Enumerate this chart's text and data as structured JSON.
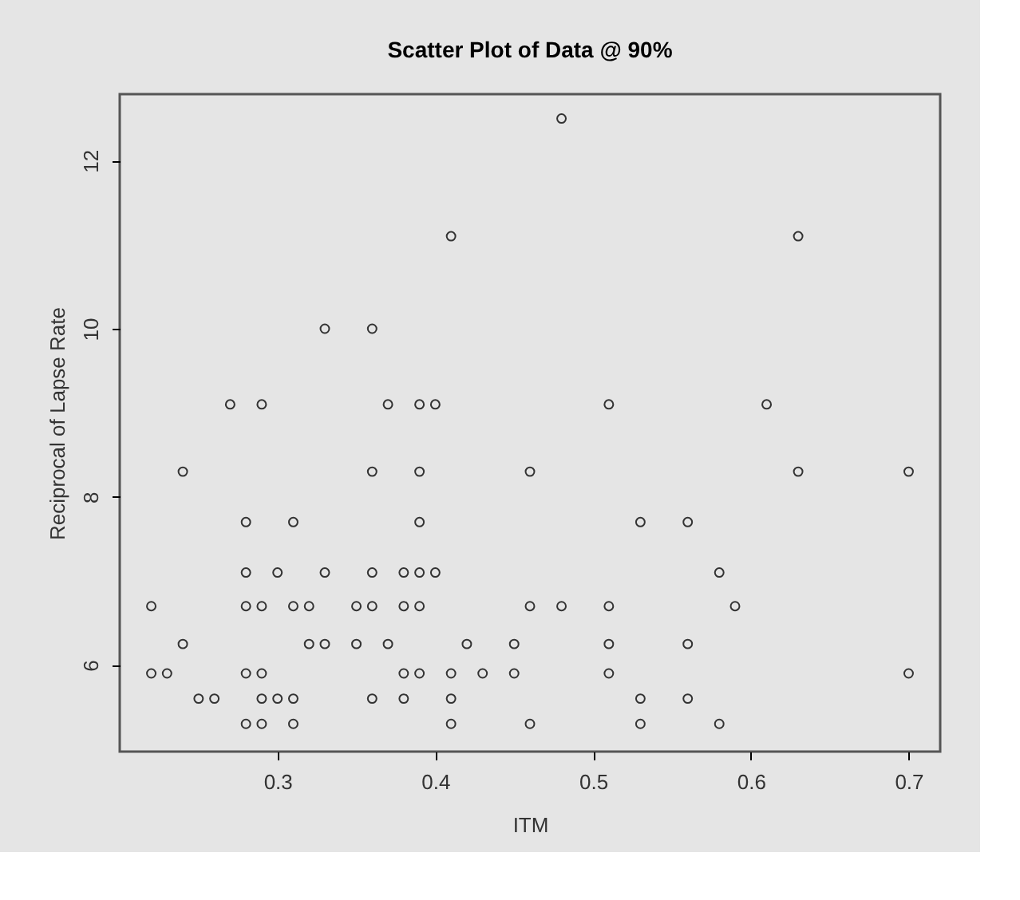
{
  "chart_data": {
    "type": "scatter",
    "title": "Scatter Plot of Data @ 90%",
    "xlabel": "ITM",
    "ylabel": "Reciprocal of Lapse Rate",
    "x": [
      0.48,
      0.41,
      0.63,
      0.33,
      0.36,
      0.27,
      0.29,
      0.37,
      0.39,
      0.4,
      0.51,
      0.61,
      0.24,
      0.36,
      0.39,
      0.46,
      0.63,
      0.7,
      0.28,
      0.31,
      0.39,
      0.53,
      0.56,
      0.28,
      0.3,
      0.33,
      0.36,
      0.38,
      0.39,
      0.4,
      0.58,
      0.22,
      0.28,
      0.29,
      0.31,
      0.32,
      0.35,
      0.36,
      0.38,
      0.39,
      0.46,
      0.48,
      0.51,
      0.59,
      0.24,
      0.32,
      0.33,
      0.35,
      0.37,
      0.42,
      0.45,
      0.51,
      0.56,
      0.22,
      0.23,
      0.28,
      0.29,
      0.38,
      0.39,
      0.41,
      0.43,
      0.45,
      0.51,
      0.7,
      0.25,
      0.26,
      0.29,
      0.3,
      0.31,
      0.36,
      0.38,
      0.41,
      0.53,
      0.56,
      0.28,
      0.29,
      0.31,
      0.41,
      0.46,
      0.53,
      0.58
    ],
    "values": [
      12.5,
      11.1,
      11.1,
      10.0,
      10.0,
      9.1,
      9.1,
      9.1,
      9.1,
      9.1,
      9.1,
      9.1,
      8.3,
      8.3,
      8.3,
      8.3,
      8.3,
      8.3,
      7.7,
      7.7,
      7.7,
      7.7,
      7.7,
      7.1,
      7.1,
      7.1,
      7.1,
      7.1,
      7.1,
      7.1,
      7.1,
      6.7,
      6.7,
      6.7,
      6.7,
      6.7,
      6.7,
      6.7,
      6.7,
      6.7,
      6.7,
      6.7,
      6.7,
      6.7,
      6.25,
      6.25,
      6.25,
      6.25,
      6.25,
      6.25,
      6.25,
      6.25,
      6.25,
      5.9,
      5.9,
      5.9,
      5.9,
      5.9,
      5.9,
      5.9,
      5.9,
      5.9,
      5.9,
      5.9,
      5.6,
      5.6,
      5.6,
      5.6,
      5.6,
      5.6,
      5.6,
      5.6,
      5.6,
      5.6,
      5.3,
      5.3,
      5.3,
      5.3,
      5.3,
      5.3,
      5.3
    ],
    "color": "#333333",
    "marker": "circle",
    "grid": false,
    "xlim": [
      0.2,
      0.72
    ],
    "xticks": [
      0.3,
      0.4,
      0.5,
      0.6,
      0.7
    ],
    "ylim": [
      4.97,
      12.79
    ],
    "yticks": [
      6,
      8,
      10,
      12
    ]
  }
}
